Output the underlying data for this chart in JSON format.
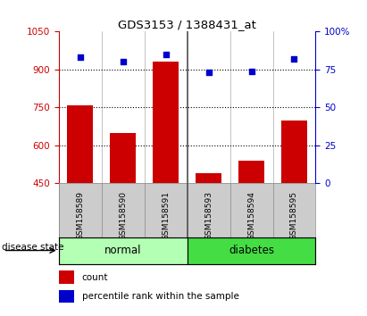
{
  "title": "GDS3153 / 1388431_at",
  "samples": [
    "GSM158589",
    "GSM158590",
    "GSM158591",
    "GSM158593",
    "GSM158594",
    "GSM158595"
  ],
  "counts": [
    760,
    650,
    930,
    490,
    540,
    700
  ],
  "percentiles": [
    83,
    80,
    85,
    73,
    74,
    82
  ],
  "groups": [
    {
      "label": "normal",
      "indices": [
        0,
        1,
        2
      ]
    },
    {
      "label": "diabetes",
      "indices": [
        3,
        4,
        5
      ]
    }
  ],
  "group_colors": [
    "#b3ffb3",
    "#44dd44"
  ],
  "bar_color": "#CC0000",
  "dot_color": "#0000CC",
  "ylim_left": [
    450,
    1050
  ],
  "ylim_right": [
    0,
    100
  ],
  "yticks_left": [
    450,
    600,
    750,
    900,
    1050
  ],
  "yticks_right": [
    0,
    25,
    50,
    75,
    100
  ],
  "grid_vals": [
    600,
    750,
    900
  ],
  "bar_width": 0.6,
  "label_color_left": "#CC0000",
  "label_color_right": "#0000CC",
  "disease_state_label": "disease state",
  "legend_count": "count",
  "legend_percentile": "percentile rank within the sample"
}
